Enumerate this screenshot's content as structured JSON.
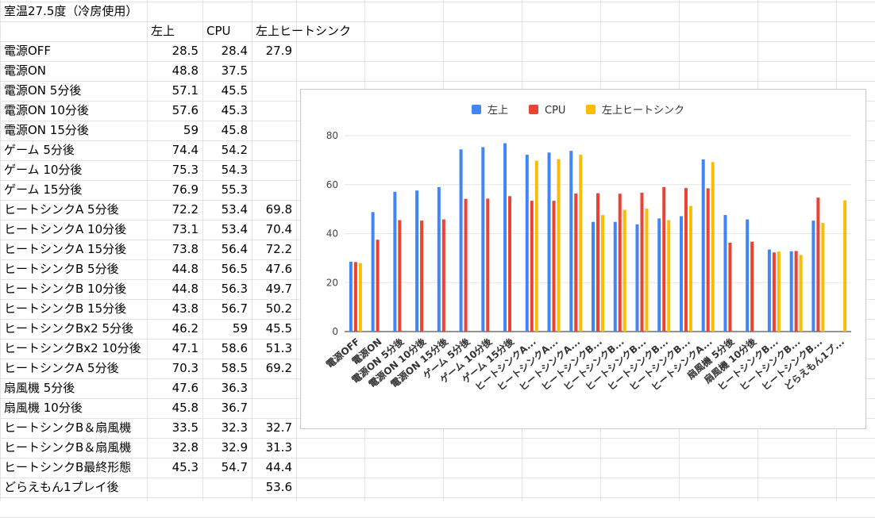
{
  "sheet": {
    "title": "室温27.5度（冷房使用）",
    "headers": [
      "左上",
      "CPU",
      "左上ヒートシンク"
    ],
    "rows": [
      {
        "label": "電源OFF",
        "a": "28.5",
        "b": "28.4",
        "c": "27.9"
      },
      {
        "label": "電源ON",
        "a": "48.8",
        "b": "37.5",
        "c": ""
      },
      {
        "label": "電源ON 5分後",
        "a": "57.1",
        "b": "45.5",
        "c": ""
      },
      {
        "label": "電源ON 10分後",
        "a": "57.6",
        "b": "45.3",
        "c": ""
      },
      {
        "label": "電源ON 15分後",
        "a": "59",
        "b": "45.8",
        "c": ""
      },
      {
        "label": "ゲーム 5分後",
        "a": "74.4",
        "b": "54.2",
        "c": ""
      },
      {
        "label": "ゲーム 10分後",
        "a": "75.3",
        "b": "54.3",
        "c": ""
      },
      {
        "label": "ゲーム 15分後",
        "a": "76.9",
        "b": "55.3",
        "c": ""
      },
      {
        "label": "ヒートシンクA 5分後",
        "a": "72.2",
        "b": "53.4",
        "c": "69.8"
      },
      {
        "label": "ヒートシンクA 10分後",
        "a": "73.1",
        "b": "53.4",
        "c": "70.4"
      },
      {
        "label": "ヒートシンクA 15分後",
        "a": "73.8",
        "b": "56.4",
        "c": "72.2"
      },
      {
        "label": "ヒートシンクB 5分後",
        "a": "44.8",
        "b": "56.5",
        "c": "47.6"
      },
      {
        "label": "ヒートシンクB 10分後",
        "a": "44.8",
        "b": "56.3",
        "c": "49.7"
      },
      {
        "label": "ヒートシンクB 15分後",
        "a": "43.8",
        "b": "56.7",
        "c": "50.2"
      },
      {
        "label": "ヒートシンクBx2 5分後",
        "a": "46.2",
        "b": "59",
        "c": "45.5"
      },
      {
        "label": "ヒートシンクBx2 10分後",
        "a": "47.1",
        "b": "58.6",
        "c": "51.3"
      },
      {
        "label": "ヒートシンクA 5分後",
        "a": "70.3",
        "b": "58.5",
        "c": "69.2"
      },
      {
        "label": "扇風機 5分後",
        "a": "47.6",
        "b": "36.3",
        "c": ""
      },
      {
        "label": "扇風機 10分後",
        "a": "45.8",
        "b": "36.7",
        "c": ""
      },
      {
        "label": "ヒートシンクB＆扇風機",
        "a": "33.5",
        "b": "32.3",
        "c": "32.7"
      },
      {
        "label": "ヒートシンクB＆扇風機",
        "a": "32.8",
        "b": "32.9",
        "c": "31.3"
      },
      {
        "label": "ヒートシンクB最終形態",
        "a": "45.3",
        "b": "54.7",
        "c": "44.4"
      },
      {
        "label": "どらえもん1プレイ後",
        "a": "",
        "b": "",
        "c": "53.6"
      }
    ]
  },
  "chart_data": {
    "type": "bar",
    "title": "",
    "xlabel": "",
    "ylabel": "",
    "ylim": [
      0,
      80
    ],
    "yticks": [
      0,
      20,
      40,
      60,
      80
    ],
    "grid": true,
    "legend": "top",
    "categories": [
      "電源OFF",
      "電源ON",
      "電源ON 5分後",
      "電源ON 10分後",
      "電源ON 15分後",
      "ゲーム 5分後",
      "ゲーム 10分後",
      "ゲーム 15分後",
      "ヒートシンクA...",
      "ヒートシンクA...",
      "ヒートシンクA...",
      "ヒートシンクB...",
      "ヒートシンクB...",
      "ヒートシンクB...",
      "ヒートシンクB...",
      "ヒートシンクB...",
      "ヒートシンクA...",
      "扇風機 5分後",
      "扇風機 10分後",
      "ヒートシンクB...",
      "ヒートシンクB...",
      "ヒートシンクB...",
      "どらえもん1プ..."
    ],
    "series": [
      {
        "name": "左上",
        "color": "#4285f4",
        "values": [
          28.5,
          48.8,
          57.1,
          57.6,
          59,
          74.4,
          75.3,
          76.9,
          72.2,
          73.1,
          73.8,
          44.8,
          44.8,
          43.8,
          46.2,
          47.1,
          70.3,
          47.6,
          45.8,
          33.5,
          32.8,
          45.3,
          null
        ]
      },
      {
        "name": "CPU",
        "color": "#ea4335",
        "values": [
          28.4,
          37.5,
          45.5,
          45.3,
          45.8,
          54.2,
          54.3,
          55.3,
          53.4,
          53.4,
          56.4,
          56.5,
          56.3,
          56.7,
          59,
          58.6,
          58.5,
          36.3,
          36.7,
          32.3,
          32.9,
          54.7,
          null
        ]
      },
      {
        "name": "左上ヒートシンク",
        "color": "#fbbc04",
        "values": [
          27.9,
          null,
          null,
          null,
          null,
          null,
          null,
          null,
          69.8,
          70.4,
          72.2,
          47.6,
          49.7,
          50.2,
          45.5,
          51.3,
          69.2,
          null,
          null,
          32.7,
          31.3,
          44.4,
          53.6
        ]
      }
    ]
  }
}
